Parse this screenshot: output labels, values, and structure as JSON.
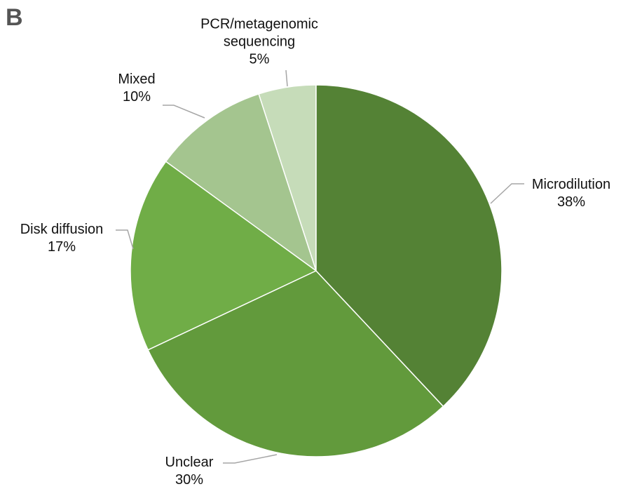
{
  "chart_data": {
    "type": "pie",
    "panel_label": "B",
    "categories": [
      "Microdilution",
      "Unclear",
      "Disk diffusion",
      "Mixed",
      "PCR/metagenomic sequencing"
    ],
    "values": [
      38,
      30,
      17,
      10,
      5
    ],
    "value_labels": [
      "38%",
      "30%",
      "17%",
      "10%",
      "5%"
    ],
    "colors": [
      "#548235",
      "#629a3c",
      "#70ad47",
      "#a4c58f",
      "#c6dcb9"
    ]
  }
}
